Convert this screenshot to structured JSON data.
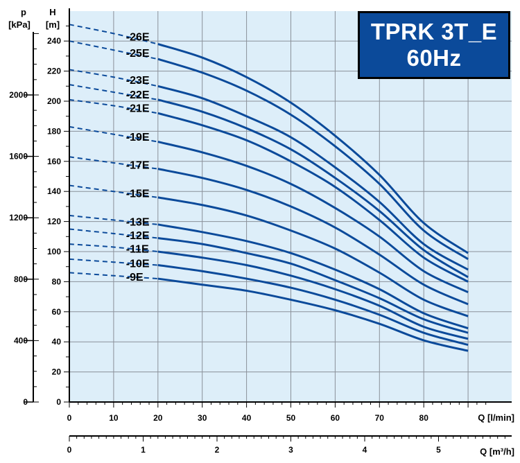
{
  "title_box": {
    "line1": "TPRK 3T_E",
    "line2": "60Hz"
  },
  "colors": {
    "plot_bg": "#ddeef9",
    "curve": "#0b4a9a",
    "title_bg": "#0b4a9a",
    "grid": "#8a9099"
  },
  "axes": {
    "p_label": [
      "p",
      "[kPa]"
    ],
    "h_label": [
      "H",
      "[m]"
    ],
    "q_lmin_label": "Q [l/min]",
    "q_m3h_label": "Q [m³/h]",
    "h_ticks": [
      0,
      20,
      40,
      60,
      80,
      100,
      120,
      140,
      160,
      180,
      200,
      220,
      240
    ],
    "p_ticks": [
      0,
      400,
      800,
      1200,
      1600,
      2000
    ],
    "q_lmin_ticks": [
      0,
      10,
      20,
      30,
      40,
      50,
      60,
      70,
      80
    ],
    "q_m3h_ticks": [
      0,
      1,
      2,
      3,
      4,
      5
    ]
  },
  "chart_data": {
    "type": "line",
    "xlabel": "Q [l/min]",
    "x2label": "Q [m³/h]",
    "ylabel": "H [m]",
    "y2label": "p [kPa]",
    "xlim": [
      0,
      90
    ],
    "ylim": [
      0,
      260
    ],
    "grid": true,
    "x": [
      0,
      10,
      20,
      30,
      40,
      50,
      60,
      70,
      80,
      90
    ],
    "dashed_until_x": 20,
    "series": [
      {
        "name": "-26E",
        "values": [
          251,
          245,
          238,
          229,
          216,
          199,
          177,
          151,
          119,
          99
        ]
      },
      {
        "name": "-25E",
        "values": [
          240,
          234,
          228,
          219,
          207,
          191,
          170,
          145,
          114,
          95
        ]
      },
      {
        "name": "-23E",
        "values": [
          221,
          216,
          210,
          202,
          190,
          176,
          156,
          133,
          105,
          88
        ]
      },
      {
        "name": "-22E",
        "values": [
          211,
          206,
          201,
          193,
          182,
          168,
          149,
          127,
          101,
          83
        ]
      },
      {
        "name": "-21E",
        "values": [
          201,
          197,
          192,
          184,
          174,
          160,
          143,
          121,
          96,
          80
        ]
      },
      {
        "name": "-19E",
        "values": [
          183,
          178,
          173,
          166,
          157,
          145,
          129,
          110,
          87,
          73
        ]
      },
      {
        "name": "-17E",
        "values": [
          163,
          159,
          155,
          149,
          141,
          130,
          116,
          98,
          78,
          65
        ]
      },
      {
        "name": "-15E",
        "values": [
          144,
          140,
          136,
          131,
          124,
          114,
          102,
          86,
          68,
          57
        ]
      },
      {
        "name": "-13E",
        "values": [
          124,
          121,
          118,
          113,
          107,
          99,
          88,
          75,
          59,
          49
        ]
      },
      {
        "name": "-12E",
        "values": [
          115,
          112,
          109,
          105,
          99,
          92,
          81,
          69,
          55,
          46
        ]
      },
      {
        "name": "-11E",
        "values": [
          105,
          103,
          100,
          96,
          91,
          84,
          75,
          64,
          50,
          42
        ]
      },
      {
        "name": "-10E",
        "values": [
          95,
          93,
          91,
          87,
          82,
          76,
          68,
          58,
          46,
          38
        ]
      },
      {
        "name": "-9E",
        "values": [
          86,
          84,
          82,
          78,
          74,
          68,
          61,
          52,
          41,
          34
        ]
      }
    ]
  }
}
